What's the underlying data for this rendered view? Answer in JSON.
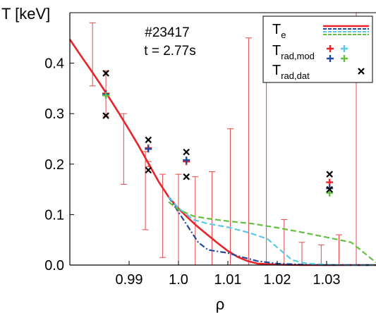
{
  "chart_data": {
    "type": "line",
    "title": "",
    "xlabel": "ρ",
    "ylabel": "T [keV]",
    "xlim": [
      0.978,
      1.04
    ],
    "ylim": [
      0.0,
      0.5
    ],
    "xticks": [
      {
        "value": 0.99,
        "label": "0.99"
      },
      {
        "value": 1.0,
        "label": "1.0"
      },
      {
        "value": 1.01,
        "label": "1.01"
      },
      {
        "value": 1.02,
        "label": "1.02"
      },
      {
        "value": 1.03,
        "label": "1.03"
      }
    ],
    "yticks": [
      {
        "value": 0.0,
        "label": "0.0"
      },
      {
        "value": 0.1,
        "label": "0.1"
      },
      {
        "value": 0.2,
        "label": "0.2"
      },
      {
        "value": 0.3,
        "label": "0.3"
      },
      {
        "value": 0.4,
        "label": "0.4"
      }
    ],
    "annotation": {
      "line1": "#23417",
      "line2": "t = 2.77s"
    },
    "legend": {
      "placement": "top-right",
      "entries": [
        {
          "label": "T",
          "sub": "e"
        },
        {
          "label": "T",
          "sub": "rad,mod"
        },
        {
          "label": "T",
          "sub": "rad,dat"
        }
      ]
    },
    "colors": {
      "red": "#e8242a",
      "blue": "#2148a0",
      "cyan": "#5bc8e6",
      "green": "#63bf3f",
      "black": "#000000",
      "errorbar": "#e54848"
    },
    "te_profiles": [
      {
        "key": "te_red",
        "color": "red",
        "dash": "solid",
        "x": [
          0.978,
          0.98,
          0.982,
          0.984,
          0.986,
          0.988,
          0.99,
          0.992,
          0.994,
          0.996,
          0.998,
          1.0,
          1.002,
          1.004,
          1.006,
          1.008,
          1.01,
          1.012,
          1.014,
          1.016,
          1.02,
          1.025,
          1.03,
          1.035,
          1.04
        ],
        "y": [
          0.447,
          0.418,
          0.39,
          0.361,
          0.331,
          0.3,
          0.268,
          0.235,
          0.2,
          0.165,
          0.135,
          0.112,
          0.093,
          0.075,
          0.059,
          0.043,
          0.028,
          0.016,
          0.008,
          0.003,
          0.001,
          0.0,
          0.0,
          0.0,
          0.0
        ]
      },
      {
        "key": "te_blue",
        "color": "blue",
        "dash": "dashdot",
        "x": [
          0.998,
          1.0,
          1.002,
          1.004,
          1.006,
          1.008,
          1.01,
          1.012,
          1.016,
          1.02,
          1.025,
          1.03,
          1.035,
          1.04
        ],
        "y": [
          0.135,
          0.105,
          0.075,
          0.045,
          0.03,
          0.027,
          0.024,
          0.018,
          0.008,
          0.003,
          0.001,
          0.0,
          0.0,
          0.0
        ]
      },
      {
        "key": "te_cyan",
        "color": "cyan",
        "dash": "dashed",
        "x": [
          0.998,
          1.0,
          1.003,
          1.006,
          1.01,
          1.014,
          1.018,
          1.02,
          1.023,
          1.026,
          1.03,
          1.035,
          1.04
        ],
        "y": [
          0.135,
          0.113,
          0.09,
          0.082,
          0.075,
          0.065,
          0.052,
          0.035,
          0.01,
          0.003,
          0.001,
          0.0,
          0.0
        ]
      },
      {
        "key": "te_green",
        "color": "green",
        "dash": "dashed",
        "x": [
          0.998,
          1.0,
          1.003,
          1.006,
          1.01,
          1.015,
          1.02,
          1.025,
          1.03,
          1.035,
          1.04
        ],
        "y": [
          0.125,
          0.11,
          0.097,
          0.092,
          0.087,
          0.082,
          0.074,
          0.065,
          0.055,
          0.045,
          0.005
        ]
      }
    ],
    "error_bars": [
      {
        "x": 0.9826,
        "low": 0.355,
        "high": 0.48
      },
      {
        "x": 0.9853,
        "low": 0.295,
        "high": 0.385
      },
      {
        "x": 0.9889,
        "low": 0.16,
        "high": 0.3
      },
      {
        "x": 0.9933,
        "low": 0.07,
        "high": 0.225
      },
      {
        "x": 0.9939,
        "low": 0.195,
        "high": 0.205
      },
      {
        "x": 0.9968,
        "low": 0.015,
        "high": 0.18
      },
      {
        "x": 1.0,
        "low": 0.0,
        "high": 0.18
      },
      {
        "x": 1.0034,
        "low": 0.0,
        "high": 0.175
      },
      {
        "x": 1.0068,
        "low": 0.0,
        "high": 0.185
      },
      {
        "x": 1.0105,
        "low": 0.0,
        "high": 0.27
      },
      {
        "x": 1.0142,
        "low": 0.0,
        "high": 0.45
      },
      {
        "x": 1.0178,
        "low": 0.0,
        "high": 0.49
      },
      {
        "x": 1.0214,
        "low": 0.0,
        "high": 0.09
      },
      {
        "x": 1.025,
        "low": 0.0,
        "high": 0.045
      },
      {
        "x": 1.0289,
        "low": 0.0,
        "high": 0.04
      },
      {
        "x": 1.0325,
        "low": 0.0,
        "high": 0.06
      },
      {
        "x": 1.036,
        "low": 0.0,
        "high": 0.5
      }
    ],
    "markers": [
      {
        "key": "trad_mod_red",
        "color": "red",
        "symbol": "plus",
        "x": [
          0.9853,
          0.9939,
          1.0016,
          1.0306
        ],
        "y": [
          0.34,
          0.232,
          0.205,
          0.164
        ]
      },
      {
        "key": "trad_mod_blue",
        "color": "blue",
        "symbol": "plus",
        "x": [
          0.9853,
          0.9939,
          1.0016,
          1.0306
        ],
        "y": [
          0.338,
          0.23,
          0.208,
          0.152
        ]
      },
      {
        "key": "trad_mod_green",
        "color": "green",
        "symbol": "plus",
        "x": [
          0.9853,
          1.0306
        ],
        "y": [
          0.336,
          0.143
        ]
      },
      {
        "key": "trad_dat",
        "color": "black",
        "symbol": "x",
        "x": [
          0.9853,
          0.9853,
          0.9939,
          0.9939,
          1.0016,
          1.0016,
          1.0306,
          1.0306
        ],
        "y": [
          0.38,
          0.296,
          0.248,
          0.188,
          0.224,
          0.175,
          0.18,
          0.15
        ]
      }
    ]
  }
}
